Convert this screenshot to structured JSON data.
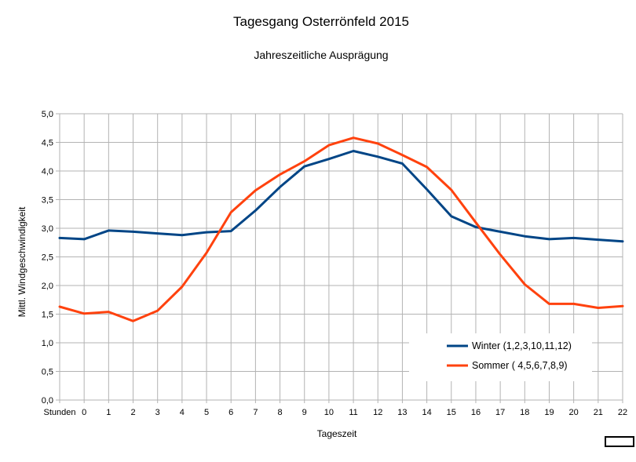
{
  "chart_data": {
    "type": "line",
    "title": "Tagesgang Osterrönfeld 2015",
    "subtitle": "Jahreszeitliche Ausprägung",
    "xlabel": "Tageszeit",
    "ylabel": "Mittl. Windgeschwindigkeit",
    "categories": [
      "Stunden",
      "0",
      "1",
      "2",
      "3",
      "4",
      "5",
      "6",
      "7",
      "8",
      "9",
      "10",
      "11",
      "12",
      "13",
      "14",
      "15",
      "16",
      "17",
      "18",
      "19",
      "20",
      "21",
      "22"
    ],
    "ylim": [
      0,
      5
    ],
    "yticks": [
      "0,0",
      "0,5",
      "1,0",
      "1,5",
      "2,0",
      "2,5",
      "3,0",
      "3,5",
      "4,0",
      "4,5",
      "5,0"
    ],
    "grid": true,
    "legend_position": "bottom-right",
    "series": [
      {
        "name": "Winter (1,2,3,10,11,12)",
        "color": "#004586",
        "values": [
          2.83,
          2.81,
          2.96,
          2.94,
          2.91,
          2.88,
          2.93,
          2.95,
          3.31,
          3.72,
          4.08,
          4.21,
          4.35,
          4.25,
          4.13,
          3.68,
          3.21,
          3.02,
          2.94,
          2.86,
          2.81,
          2.83,
          2.8,
          2.77
        ]
      },
      {
        "name": "Sommer ( 4,5,6,7,8,9)",
        "color": "#ff420e",
        "values": [
          1.63,
          1.51,
          1.54,
          1.38,
          1.56,
          1.98,
          2.57,
          3.28,
          3.66,
          3.94,
          4.17,
          4.45,
          4.58,
          4.48,
          4.28,
          4.07,
          3.67,
          3.1,
          2.54,
          2.02,
          1.68,
          1.68,
          1.61,
          1.64
        ]
      }
    ]
  }
}
